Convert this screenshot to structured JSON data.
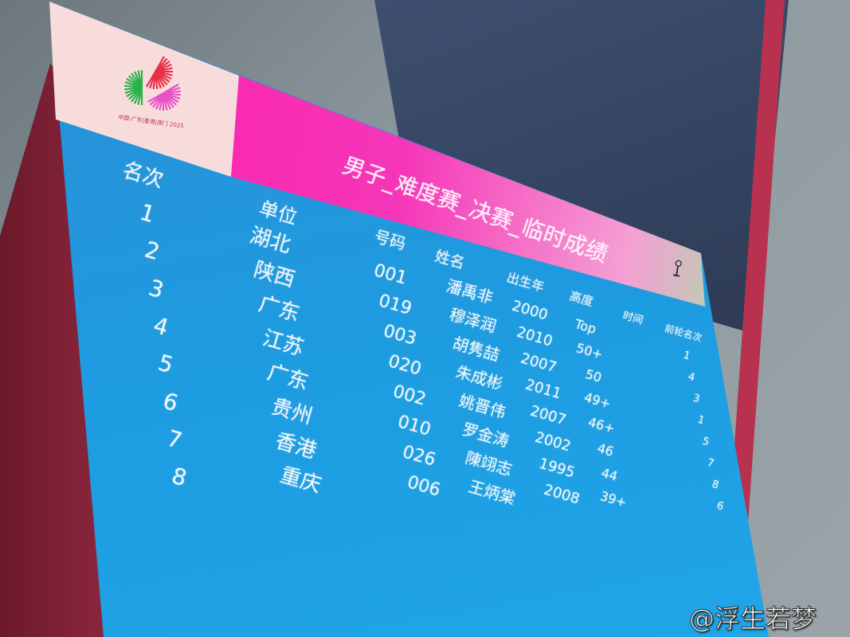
{
  "scoreboard": {
    "logo_text": "中国·广东|香港|澳门 2025",
    "title": "男子_难度赛_决赛_临时成绩",
    "headers": {
      "rank": "名次",
      "unit": "单位",
      "number": "号码",
      "name": "姓名",
      "birth": "出生年",
      "height": "高度",
      "time": "时间",
      "prev": "前轮名次"
    },
    "ranks": [
      "1",
      "2",
      "3",
      "4",
      "5",
      "6",
      "7",
      "8"
    ],
    "rows": [
      {
        "unit": "湖北",
        "number": "001",
        "name": "潘禹非",
        "birth": "2000",
        "height": "Top",
        "prev": "1"
      },
      {
        "unit": "陕西",
        "number": "019",
        "name": "穆泽润",
        "birth": "2010",
        "height": "50+",
        "prev": "4"
      },
      {
        "unit": "广东",
        "number": "003",
        "name": "胡隽喆",
        "birth": "2007",
        "height": "50",
        "prev": "3"
      },
      {
        "unit": "江苏",
        "number": "020",
        "name": "朱成彬",
        "birth": "2011",
        "height": "49+",
        "prev": "1"
      },
      {
        "unit": "广东",
        "number": "002",
        "name": "姚晋伟",
        "birth": "2007",
        "height": "46+",
        "prev": "5"
      },
      {
        "unit": "贵州",
        "number": "010",
        "name": "罗金涛",
        "birth": "2002",
        "height": "46",
        "prev": "7"
      },
      {
        "unit": "香港",
        "number": "026",
        "name": "陳翊志",
        "birth": "1995",
        "height": "44",
        "prev": "8"
      },
      {
        "unit": "重庆",
        "number": "006",
        "name": "王炳棠",
        "birth": "2008",
        "height": "39+",
        "prev": "6"
      }
    ],
    "colors": {
      "board": "#1e9be0",
      "band_pink": "#ff1aa8",
      "band_green": "#22e07a"
    }
  },
  "watermark": "@浮生若梦"
}
